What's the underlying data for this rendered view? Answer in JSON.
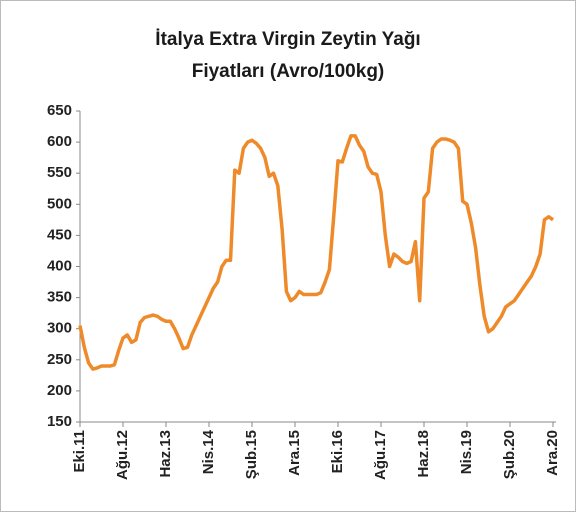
{
  "chart_data": {
    "type": "line",
    "title": [
      "İtalya Extra Virgin Zeytin Yağı",
      "Fiyatları (Avro/100kg)"
    ],
    "categories": [
      "Eki.11",
      null,
      null,
      null,
      null,
      null,
      null,
      null,
      null,
      null,
      "Ağu.12",
      null,
      null,
      null,
      null,
      null,
      null,
      null,
      null,
      null,
      "Haz.13",
      null,
      null,
      null,
      null,
      null,
      null,
      null,
      null,
      null,
      "Nis.14",
      null,
      null,
      null,
      null,
      null,
      null,
      null,
      null,
      null,
      "Şub.15",
      null,
      null,
      null,
      null,
      null,
      null,
      null,
      null,
      null,
      "Ara.15",
      null,
      null,
      null,
      null,
      null,
      null,
      null,
      null,
      null,
      "Eki.16",
      null,
      null,
      null,
      null,
      null,
      null,
      null,
      null,
      null,
      "Ağu.17",
      null,
      null,
      null,
      null,
      null,
      null,
      null,
      null,
      null,
      "Haz.18",
      null,
      null,
      null,
      null,
      null,
      null,
      null,
      null,
      null,
      "Nis.19",
      null,
      null,
      null,
      null,
      null,
      null,
      null,
      null,
      null,
      "Şub.20",
      null,
      null,
      null,
      null,
      null,
      null,
      null,
      null,
      null,
      "Ara.20"
    ],
    "series": [
      {
        "color": "#ef8a2a",
        "values": [
          305,
          270,
          245,
          235,
          237,
          240,
          240,
          240,
          242,
          265,
          285,
          290,
          278,
          282,
          310,
          318,
          320,
          322,
          320,
          315,
          312,
          312,
          300,
          285,
          268,
          270,
          290,
          305,
          320,
          335,
          350,
          365,
          375,
          400,
          410,
          410,
          555,
          550,
          590,
          600,
          603,
          598,
          590,
          575,
          545,
          550,
          530,
          460,
          360,
          345,
          350,
          360,
          355,
          355,
          355,
          355,
          358,
          375,
          395,
          480,
          570,
          568,
          590,
          610,
          610,
          595,
          585,
          560,
          550,
          548,
          520,
          450,
          400,
          420,
          415,
          408,
          405,
          408,
          440,
          345,
          510,
          520,
          590,
          600,
          605,
          605,
          603,
          600,
          590,
          505,
          500,
          470,
          430,
          370,
          320,
          295,
          300,
          310,
          320,
          335,
          340,
          345,
          355,
          365,
          375,
          385,
          400,
          420,
          475,
          480,
          475
        ]
      }
    ],
    "ylim": [
      150,
      650
    ],
    "yticks": [
      150,
      200,
      250,
      300,
      350,
      400,
      450,
      500,
      550,
      600,
      650
    ],
    "grid": false
  }
}
